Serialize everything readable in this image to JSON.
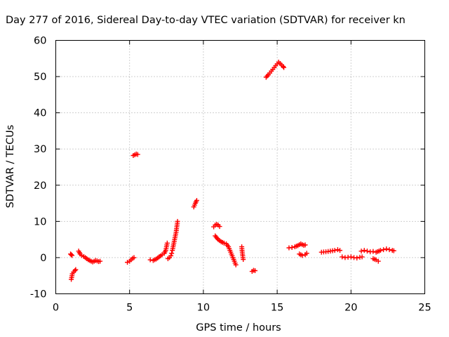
{
  "chart_data": {
    "type": "scatter",
    "title": "Day 277 of 2016, Sidereal Day-to-day VTEC variation (SDTVAR) for receiver kn",
    "xlabel": "GPS time / hours",
    "ylabel": "SDTVAR / TECUs",
    "xlim": [
      0,
      25
    ],
    "ylim": [
      -10,
      60
    ],
    "xticks": [
      "0",
      "5",
      "10",
      "15",
      "20",
      "25"
    ],
    "yticks": [
      "-10",
      "0",
      "10",
      "20",
      "30",
      "40",
      "50",
      "60"
    ],
    "grid": true,
    "marker_color": "#ff0000",
    "marker": "plus",
    "segments": [
      [
        [
          1.0,
          1.0
        ],
        [
          1.05,
          0.8
        ],
        [
          1.1,
          0.6
        ]
      ],
      [
        [
          1.05,
          -6.0
        ],
        [
          1.1,
          -5.0
        ],
        [
          1.12,
          -4.5
        ],
        [
          1.2,
          -4.0
        ],
        [
          1.3,
          -3.6
        ],
        [
          1.35,
          -3.3
        ]
      ],
      [
        [
          1.55,
          1.8
        ],
        [
          1.65,
          1.0
        ],
        [
          1.75,
          0.6
        ],
        [
          1.9,
          0.3
        ],
        [
          2.0,
          0.0
        ],
        [
          2.1,
          -0.3
        ],
        [
          2.2,
          -0.6
        ],
        [
          2.3,
          -0.8
        ],
        [
          2.4,
          -1.0
        ],
        [
          2.5,
          -1.2
        ],
        [
          2.6,
          -1.0
        ],
        [
          2.7,
          -0.8
        ],
        [
          2.8,
          -0.9
        ],
        [
          2.9,
          -1.1
        ],
        [
          3.0,
          -1.0
        ]
      ],
      [
        [
          4.85,
          -1.3
        ],
        [
          5.0,
          -1.0
        ],
        [
          5.1,
          -0.6
        ],
        [
          5.2,
          -0.2
        ],
        [
          5.3,
          0.0
        ]
      ],
      [
        [
          5.25,
          28.2
        ],
        [
          5.35,
          28.4
        ],
        [
          5.45,
          28.6
        ],
        [
          5.55,
          28.5
        ]
      ],
      [
        [
          6.4,
          -0.6
        ],
        [
          6.6,
          -0.8
        ],
        [
          6.8,
          -0.4
        ],
        [
          7.0,
          0.2
        ],
        [
          7.2,
          0.8
        ],
        [
          7.35,
          1.2
        ],
        [
          7.45,
          2.0
        ],
        [
          7.5,
          3.0
        ],
        [
          7.55,
          4.0
        ]
      ],
      [
        [
          7.6,
          -0.3
        ],
        [
          7.7,
          0.0
        ],
        [
          7.8,
          0.5
        ],
        [
          7.85,
          1.2
        ],
        [
          7.9,
          2.0
        ],
        [
          7.95,
          3.0
        ],
        [
          8.0,
          4.0
        ],
        [
          8.05,
          5.0
        ],
        [
          8.1,
          6.0
        ],
        [
          8.15,
          7.0
        ],
        [
          8.2,
          8.5
        ],
        [
          8.25,
          10.0
        ]
      ],
      [
        [
          9.35,
          14.0
        ],
        [
          9.4,
          14.5
        ],
        [
          9.45,
          15.0
        ],
        [
          9.5,
          15.4
        ],
        [
          9.55,
          15.8
        ]
      ],
      [
        [
          10.7,
          8.5
        ],
        [
          10.8,
          9.0
        ],
        [
          10.9,
          9.2
        ],
        [
          11.0,
          9.0
        ],
        [
          11.1,
          8.6
        ]
      ],
      [
        [
          10.8,
          6.0
        ],
        [
          11.0,
          5.0
        ],
        [
          11.2,
          4.4
        ],
        [
          11.4,
          4.0
        ],
        [
          11.55,
          3.8
        ],
        [
          11.7,
          3.0
        ],
        [
          11.8,
          2.0
        ],
        [
          11.9,
          1.0
        ],
        [
          12.0,
          0.0
        ],
        [
          12.1,
          -1.0
        ],
        [
          12.2,
          -2.0
        ]
      ],
      [
        [
          12.6,
          3.0
        ],
        [
          12.62,
          2.0
        ],
        [
          12.65,
          1.0
        ],
        [
          12.68,
          0.0
        ],
        [
          12.7,
          -0.5
        ]
      ],
      [
        [
          13.3,
          -3.8
        ],
        [
          13.4,
          -3.5
        ],
        [
          13.5,
          -3.6
        ]
      ],
      [
        [
          14.25,
          49.8
        ],
        [
          14.4,
          50.5
        ],
        [
          14.5,
          51.0
        ],
        [
          14.6,
          51.5
        ],
        [
          14.7,
          52.0
        ],
        [
          14.8,
          52.5
        ],
        [
          14.9,
          53.0
        ],
        [
          15.0,
          53.5
        ],
        [
          15.1,
          54.0
        ],
        [
          15.2,
          53.6
        ],
        [
          15.3,
          53.2
        ],
        [
          15.4,
          52.8
        ],
        [
          15.45,
          52.5
        ]
      ],
      [
        [
          15.8,
          2.7
        ],
        [
          16.0,
          2.8
        ],
        [
          16.2,
          3.0
        ],
        [
          16.4,
          3.3
        ],
        [
          16.5,
          3.6
        ],
        [
          16.6,
          3.8
        ],
        [
          16.7,
          3.6
        ],
        [
          16.8,
          3.4
        ],
        [
          16.9,
          3.5
        ]
      ],
      [
        [
          16.5,
          1.0
        ],
        [
          16.7,
          0.6
        ],
        [
          16.9,
          0.8
        ],
        [
          17.0,
          1.2
        ]
      ],
      [
        [
          18.0,
          1.5
        ],
        [
          18.3,
          1.6
        ],
        [
          18.6,
          1.8
        ],
        [
          18.9,
          2.0
        ],
        [
          19.1,
          2.2
        ],
        [
          19.25,
          2.0
        ]
      ],
      [
        [
          19.4,
          0.2
        ],
        [
          19.6,
          0.0
        ],
        [
          19.8,
          0.1
        ],
        [
          20.0,
          0.2
        ],
        [
          20.2,
          0.0
        ],
        [
          20.4,
          -0.1
        ],
        [
          20.6,
          0.1
        ],
        [
          20.75,
          0.2
        ]
      ],
      [
        [
          20.7,
          1.8
        ],
        [
          20.9,
          2.0
        ],
        [
          21.1,
          1.8
        ],
        [
          21.3,
          1.6
        ],
        [
          21.5,
          1.7
        ],
        [
          21.7,
          1.5
        ],
        [
          21.9,
          1.8
        ]
      ],
      [
        [
          21.5,
          -0.3
        ],
        [
          21.7,
          -0.6
        ],
        [
          21.85,
          -1.0
        ]
      ],
      [
        [
          22.0,
          2.0
        ],
        [
          22.2,
          2.2
        ],
        [
          22.4,
          2.4
        ],
        [
          22.6,
          2.2
        ],
        [
          22.8,
          2.0
        ],
        [
          22.9,
          1.9
        ]
      ]
    ]
  }
}
